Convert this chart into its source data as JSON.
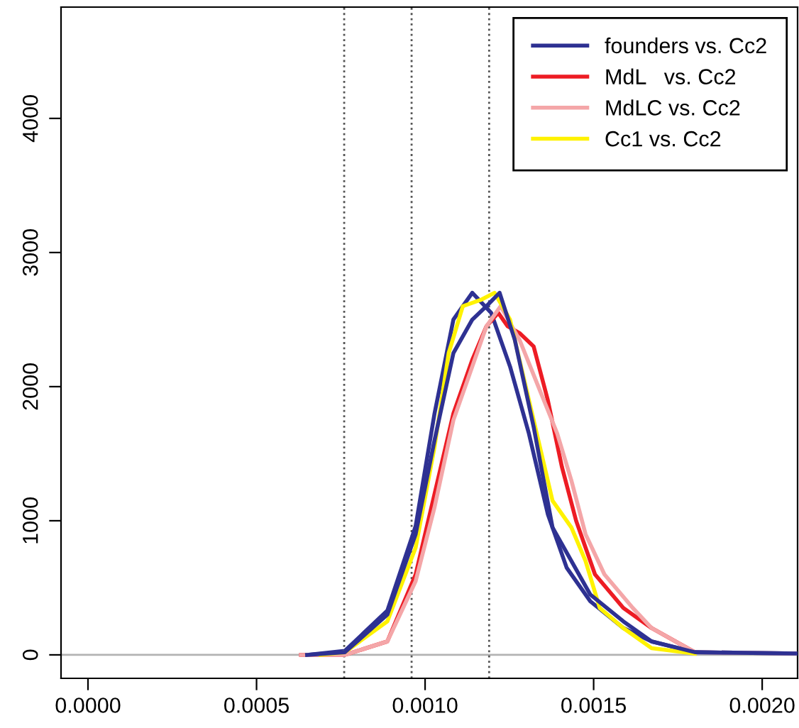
{
  "chart_data": {
    "type": "line",
    "xlim": [
      -8e-05,
      0.002105
    ],
    "ylim": [
      -175,
      4830
    ],
    "xticks": [
      {
        "value": 0,
        "label": "0.0000"
      },
      {
        "value": 0.0005,
        "label": "0.0005"
      },
      {
        "value": 0.001,
        "label": "0.0010"
      },
      {
        "value": 0.0015,
        "label": "0.0015"
      },
      {
        "value": 0.002,
        "label": "0.0020"
      }
    ],
    "yticks": [
      0,
      1000,
      2000,
      3000,
      4000
    ],
    "grid": false,
    "legend": "top right",
    "line_style": "solid",
    "marker": "none",
    "ref_lines": [
      {
        "axis": "y",
        "value": 0,
        "color": "#b3b3b3",
        "line_style": "solid"
      },
      {
        "axis": "x",
        "value": 0.00076,
        "color": "#555555",
        "line_style": "dotted"
      },
      {
        "axis": "x",
        "value": 0.00096,
        "color": "#555555",
        "line_style": "dotted"
      },
      {
        "axis": "x",
        "value": 0.00119,
        "color": "#555555",
        "line_style": "dotted"
      }
    ],
    "series": [
      {
        "name": "founders vs. Cc2",
        "color": "#2e3192",
        "x": [
          0.00065,
          0.000762,
          0.000888,
          0.000972,
          0.001028,
          0.001084,
          0.00114,
          0.001196,
          0.001252,
          0.001308,
          0.001364,
          0.00142,
          0.00149,
          0.001588,
          0.001672,
          0.0018,
          0.0021
        ],
        "values": [
          0,
          30,
          330,
          960,
          1800,
          2500,
          2700,
          2550,
          2150,
          1650,
          1050,
          650,
          400,
          200,
          100,
          20,
          10
        ]
      },
      {
        "name": "MdL   vs. Cc2",
        "color": "#ed1c24",
        "x": [
          0.000632,
          0.000762,
          0.000888,
          0.000972,
          0.001028,
          0.001084,
          0.00114,
          0.001182,
          0.001217,
          0.001245,
          0.00128,
          0.001322,
          0.001364,
          0.001406,
          0.001448,
          0.001504,
          0.001588,
          0.001672,
          0.0018
        ],
        "values": [
          0,
          0,
          100,
          600,
          1200,
          1800,
          2200,
          2450,
          2550,
          2450,
          2400,
          2300,
          1900,
          1400,
          1000,
          600,
          350,
          200,
          20
        ]
      },
      {
        "name": "MdLC vs. Cc2",
        "color": "#f4a6a8",
        "x": [
          0.000632,
          0.000762,
          0.000888,
          0.000972,
          0.001028,
          0.001084,
          0.00114,
          0.001182,
          0.001224,
          0.00128,
          0.001336,
          0.001392,
          0.001434,
          0.001476,
          0.001532,
          0.001616,
          0.001672,
          0.0018,
          0.0021
        ],
        "values": [
          0,
          0,
          100,
          550,
          1100,
          1750,
          2150,
          2450,
          2600,
          2350,
          2000,
          1650,
          1300,
          900,
          600,
          350,
          200,
          20,
          10
        ]
      },
      {
        "name": "Cc1 vs. Cc2",
        "color": "#fff200",
        "x": [
          0.00069,
          0.000762,
          0.000888,
          0.000972,
          0.001028,
          0.00107,
          0.001112,
          0.001168,
          0.001206,
          0.001252,
          0.001308,
          0.001378,
          0.001434,
          0.001476,
          0.001518,
          0.001588,
          0.001672,
          0.0018
        ],
        "values": [
          0,
          20,
          250,
          800,
          1550,
          2250,
          2600,
          2650,
          2700,
          2500,
          1900,
          1150,
          950,
          700,
          350,
          200,
          50,
          10
        ]
      },
      {
        "color": "#2e3192",
        "x": [
          0.00065,
          0.000762,
          0.000888,
          0.000972,
          0.001028,
          0.001084,
          0.00114,
          0.001182,
          0.001221,
          0.001266,
          0.001322,
          0.001378,
          0.001434,
          0.00149,
          0.001588,
          0.001672,
          0.0018,
          0.0021
        ],
        "values": [
          0,
          20,
          300,
          900,
          1600,
          2250,
          2500,
          2600,
          2700,
          2350,
          1700,
          950,
          700,
          450,
          250,
          100,
          20,
          10
        ]
      }
    ]
  }
}
